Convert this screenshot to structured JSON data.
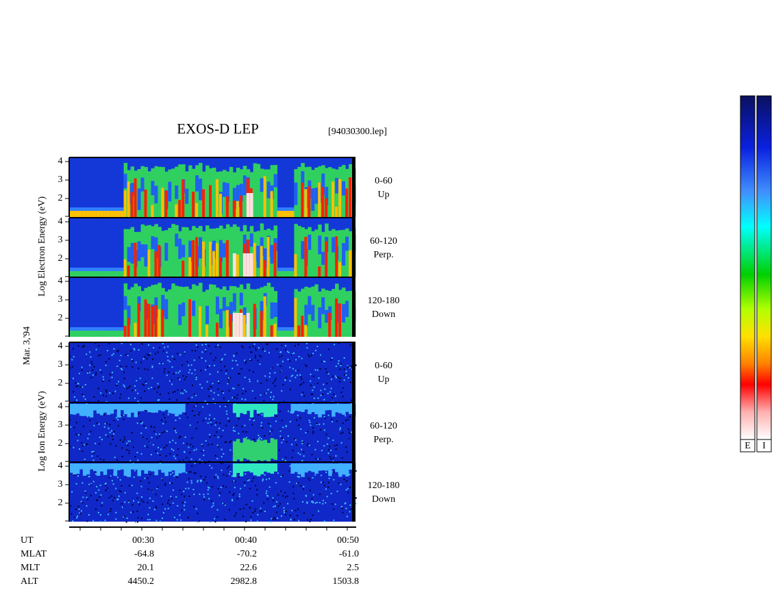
{
  "title": "EXOS-D LEP",
  "file": "[94030300.lep]",
  "date": "Mar. 3,'94",
  "yticks": [
    "4",
    "3",
    "2"
  ],
  "electron": {
    "ylabel": "Log Electron Energy (eV)",
    "panels": [
      {
        "angle": "0-60",
        "dir": "Up"
      },
      {
        "angle": "60-120",
        "dir": "Perp."
      },
      {
        "angle": "120-180",
        "dir": "Down"
      }
    ]
  },
  "ion": {
    "ylabel": "Log Ion Energy (eV)",
    "panels": [
      {
        "angle": "0-60",
        "dir": "Up"
      },
      {
        "angle": "60-120",
        "dir": "Perp."
      },
      {
        "angle": "120-180",
        "dir": "Down"
      }
    ]
  },
  "footer": {
    "rows": [
      {
        "label": "UT",
        "values": [
          "00:30",
          "00:40",
          "00:50"
        ]
      },
      {
        "label": "MLAT",
        "values": [
          "-64.8",
          "-70.2",
          "-61.0"
        ]
      },
      {
        "label": "MLT",
        "values": [
          "20.1",
          "22.6",
          "2.5"
        ]
      },
      {
        "label": "ALT",
        "values": [
          "4450.2",
          "2982.8",
          "1503.8"
        ]
      }
    ]
  },
  "colorbars": [
    "E",
    "I"
  ]
}
